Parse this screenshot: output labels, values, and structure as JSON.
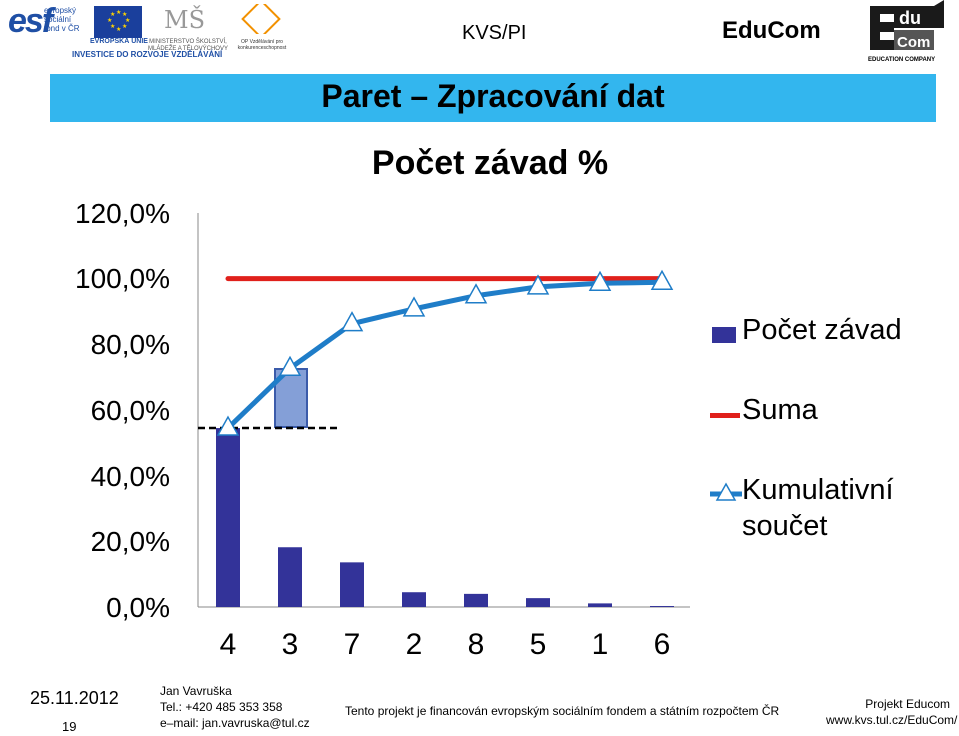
{
  "header": {
    "esf_logo": "esf",
    "esf_sub": [
      "evropský",
      "sociální",
      "fond v ČR"
    ],
    "eu_label": "EVROPSKÁ UNIE",
    "msmt_label": "MINISTERSTVO ŠKOLSTVÍ, MLÁDEŽE A TĚLOVÝCHOVY",
    "op_label": "OP Vzdělávání pro konkurenceschopnost",
    "invest": "INVESTICE DO ROZVOJE VZDĚLÁVÁNÍ",
    "center": "KVS/PI",
    "right": "EduCom",
    "educom_logo_top": "du",
    "educom_logo_bottom": "Com",
    "educom_caption": "EDUCATION COMPANY"
  },
  "slide_title": "Paret – Zpracování dat",
  "chart_data": {
    "type": "bar",
    "title": "Počet závad %",
    "categories": [
      "4",
      "3",
      "7",
      "2",
      "8",
      "5",
      "1",
      "6"
    ],
    "series": [
      {
        "name": "Počet závad",
        "type": "bar",
        "values": [
          54.5,
          18.2,
          13.6,
          4.5,
          4.0,
          2.7,
          1.1,
          0.3
        ],
        "color": "#333399"
      },
      {
        "name": "Suma",
        "type": "line",
        "values": [
          100,
          100,
          100,
          100,
          100,
          100,
          100,
          100
        ],
        "color": "#e0201b"
      },
      {
        "name": "Kumulativní součet",
        "type": "line",
        "values": [
          54.5,
          72.7,
          86.3,
          90.8,
          94.8,
          97.5,
          98.6,
          98.9
        ],
        "color": "#1f7dc8"
      }
    ],
    "ylim": [
      0,
      120
    ],
    "yticks": [
      "0,0%",
      "20,0%",
      "40,0%",
      "60,0%",
      "80,0%",
      "100,0%",
      "120,0%"
    ],
    "grid": false,
    "legend_position": "right"
  },
  "footer": {
    "date": "25.11.2012",
    "page": "19",
    "name": "Jan Vavruška",
    "tel": "Tel.: +420 485 353 358",
    "email": "e–mail: jan.vavruska@tul.cz",
    "funding": "Tento projekt je financován evropským sociálním fondem a státním rozpočtem ČR",
    "project": "Projekt Educom",
    "url": "www.kvs.tul.cz/EduCom/"
  }
}
